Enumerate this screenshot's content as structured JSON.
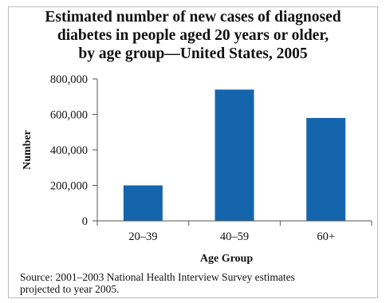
{
  "title_lines": [
    "Estimated number of new cases of diagnosed",
    "diabetes in people aged 20 years or older,",
    "by age group—United States, 2005"
  ],
  "source_lines": [
    "Source:  2001–2003 National Health Interview Survey estimates",
    "projected to year 2005."
  ],
  "colors": {
    "bar": "#1565ad",
    "axis": "#555555"
  },
  "chart_data": {
    "type": "bar",
    "title": "Estimated number of new cases of diagnosed diabetes in people aged 20 years or older, by age group—United States, 2005",
    "categories": [
      "20–39",
      "40–59",
      "60+"
    ],
    "values": [
      200000,
      740000,
      580000
    ],
    "xlabel": "Age Group",
    "ylabel": "Number",
    "ylim": [
      0,
      800000
    ],
    "yticks": [
      0,
      200000,
      400000,
      600000,
      800000
    ],
    "ytick_labels": [
      "0",
      "200,000",
      "400,000",
      "600,000",
      "800,000"
    ],
    "grid": false,
    "legend": "none"
  }
}
